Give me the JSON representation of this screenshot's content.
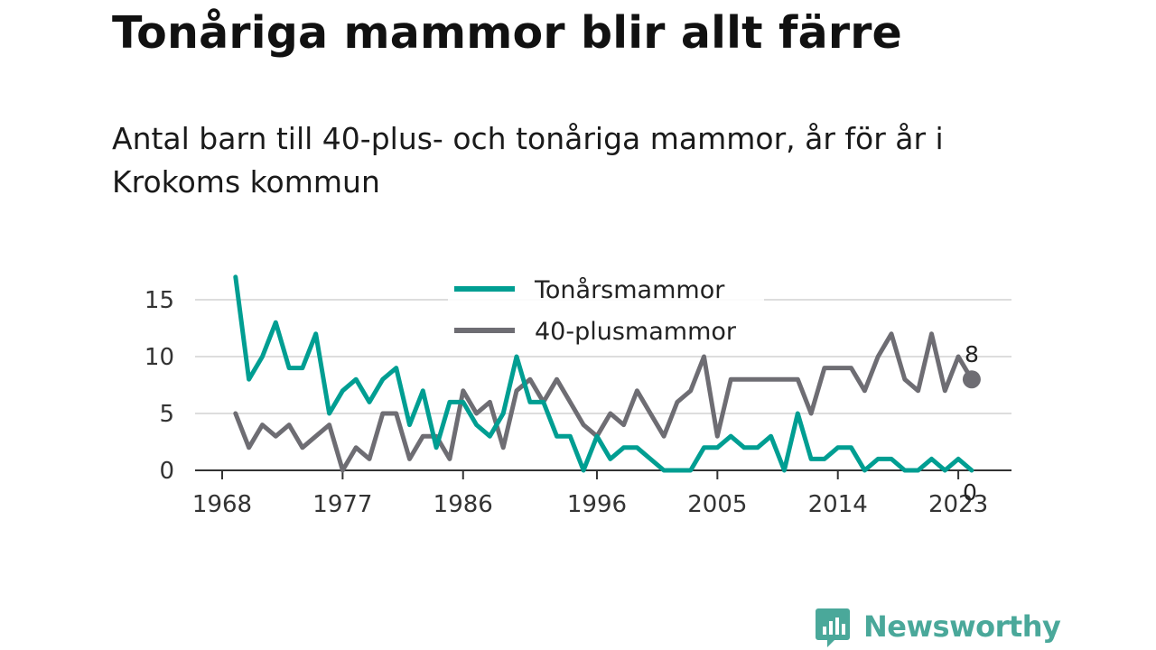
{
  "title": "Tonåriga mammor blir allt färre",
  "subtitle": "Antal barn till 40-plus- och tonåriga mammor, år för år i Krokoms kommun",
  "brand": {
    "name": "Newsworthy",
    "logo_icon": "chart-bubble-icon",
    "color": "#4aa89a"
  },
  "chart_data": {
    "type": "line",
    "x": [
      1969,
      1970,
      1971,
      1972,
      1973,
      1974,
      1975,
      1976,
      1977,
      1978,
      1979,
      1980,
      1981,
      1982,
      1983,
      1984,
      1985,
      1986,
      1987,
      1988,
      1989,
      1990,
      1991,
      1992,
      1993,
      1994,
      1995,
      1996,
      1997,
      1998,
      1999,
      2000,
      2001,
      2002,
      2003,
      2004,
      2005,
      2006,
      2007,
      2008,
      2009,
      2010,
      2011,
      2012,
      2013,
      2014,
      2015,
      2016,
      2017,
      2018,
      2019,
      2020,
      2021,
      2022,
      2023,
      2024
    ],
    "series": [
      {
        "name": "Tonårsmammor",
        "color": "#009e92",
        "values": [
          17,
          8,
          10,
          13,
          9,
          9,
          12,
          5,
          7,
          8,
          6,
          8,
          9,
          4,
          7,
          2,
          6,
          6,
          4,
          3,
          5,
          10,
          6,
          6,
          3,
          3,
          0,
          3,
          1,
          2,
          2,
          1,
          0,
          0,
          0,
          2,
          2,
          3,
          2,
          2,
          3,
          0,
          5,
          1,
          1,
          2,
          2,
          0,
          1,
          1,
          0,
          0,
          1,
          0,
          1,
          0
        ]
      },
      {
        "name": "40-plusmammor",
        "color": "#6e6d73",
        "values": [
          5,
          2,
          4,
          3,
          4,
          2,
          3,
          4,
          0,
          2,
          1,
          5,
          5,
          1,
          3,
          3,
          1,
          7,
          5,
          6,
          2,
          7,
          8,
          6,
          8,
          6,
          4,
          3,
          5,
          4,
          7,
          5,
          3,
          6,
          7,
          10,
          3,
          8,
          8,
          8,
          8,
          8,
          8,
          5,
          9,
          9,
          9,
          7,
          10,
          12,
          8,
          7,
          12,
          7,
          10,
          8
        ]
      }
    ],
    "end_labels": [
      "8",
      "0"
    ],
    "y_ticks": [
      "0",
      "5",
      "10",
      "15"
    ],
    "x_ticks": [
      "1968",
      "1977",
      "1986",
      "1996",
      "2005",
      "2014",
      "2023"
    ],
    "ylim": [
      0,
      17
    ],
    "xlim": [
      1968,
      2024
    ],
    "legend": "top-center",
    "grid": true,
    "xlabel": "",
    "ylabel": ""
  }
}
